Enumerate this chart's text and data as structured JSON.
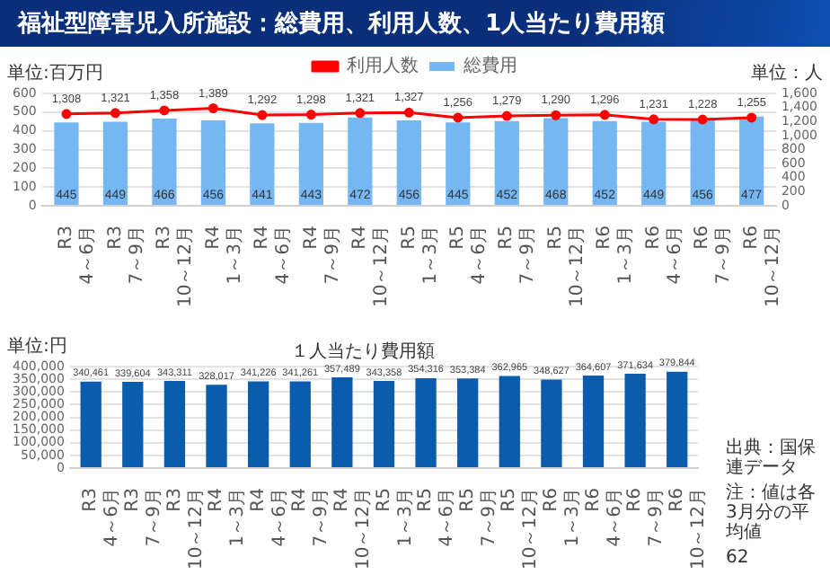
{
  "chart_data": [
    {
      "type": "bar",
      "title": "福祉型障害児入所施設：総費用、利用人数、1人当たり費用額",
      "ylabel": "単位:百万円",
      "y2label": "単位：人",
      "categories": [
        "R3\n4～6月",
        "R3\n7～9月",
        "R3\n10～12月",
        "R4\n1～3月",
        "R4\n4～6月",
        "R4\n7～9月",
        "R4\n10～12月",
        "R5\n1～3月",
        "R5\n4～6月",
        "R5\n7～9月",
        "R5\n10～12月",
        "R6\n1～3月",
        "R6\n4～6月",
        "R6\n7～9月",
        "R6\n10～12月"
      ],
      "series": [
        {
          "name": "総費用",
          "type": "bar",
          "color": "#75b7f2",
          "values": [
            445,
            449,
            466,
            456,
            441,
            443,
            472,
            456,
            445,
            452,
            468,
            452,
            449,
            456,
            477
          ]
        },
        {
          "name": "利用人数",
          "type": "line",
          "axis": "y2",
          "color": "#ff0000",
          "values": [
            1308,
            1321,
            1358,
            1389,
            1292,
            1298,
            1321,
            1327,
            1256,
            1279,
            1290,
            1296,
            1231,
            1228,
            1255
          ],
          "value_labels": [
            "1,308",
            "1,321",
            "1,358",
            "1,389",
            "1,292",
            "1,298",
            "1,321",
            "1,327",
            "1,256",
            "1,279",
            "1,290",
            "1,296",
            "1,231",
            "1,228",
            "1,255"
          ]
        }
      ],
      "ylim": [
        0,
        600
      ],
      "yticks": [
        0,
        100,
        200,
        300,
        400,
        500,
        600
      ],
      "y2lim": [
        0,
        1600
      ],
      "y2ticks": [
        0,
        200,
        400,
        600,
        800,
        {
          "value": 1000,
          "label": "1,000"
        },
        {
          "value": 1200,
          "label": "1,200"
        },
        {
          "value": 1400,
          "label": "1,400"
        },
        {
          "value": 1600,
          "label": "1,600"
        }
      ],
      "grid": "y",
      "legend": "top",
      "marker": "circle",
      "data_labels": true
    },
    {
      "type": "bar",
      "title": "１人当たり費用額",
      "ylabel": "単位:円",
      "categories": [
        "R3\n4～6月",
        "R3\n7～9月",
        "R3\n10～12月",
        "R4\n1～3月",
        "R4\n4～6月",
        "R4\n7～9月",
        "R4\n10～12月",
        "R5\n1～3月",
        "R5\n4～6月",
        "R5\n7～9月",
        "R5\n10～12月",
        "R6\n1～3月",
        "R6\n4～6月",
        "R6\n7～9月",
        "R6\n10～12月"
      ],
      "values": [
        340461,
        339604,
        343311,
        328017,
        341226,
        341261,
        357489,
        343358,
        354316,
        353384,
        362965,
        348627,
        364607,
        371634,
        379844
      ],
      "value_labels": [
        "340,461",
        "339,604",
        "343,311",
        "328,017",
        "341,226",
        "341,261",
        "357,489",
        "343,358",
        "354,316",
        "353,384",
        "362,965",
        "348,627",
        "364,607",
        "371,634",
        "379,844"
      ],
      "color": "#0b5cad",
      "ylim": [
        0,
        400000
      ],
      "yticks": [
        0,
        {
          "value": 50000,
          "label": "50,000"
        },
        {
          "value": 100000,
          "label": "100,000"
        },
        {
          "value": 150000,
          "label": "150,000"
        },
        {
          "value": 200000,
          "label": "200,000"
        },
        {
          "value": 250000,
          "label": "250,000"
        },
        {
          "value": 300000,
          "label": "300,000"
        },
        {
          "value": 350000,
          "label": "350,000"
        },
        {
          "value": 400000,
          "label": "400,000"
        }
      ],
      "grid": "y",
      "annotations": [
        "出典：国保連データ",
        "注：値は各3月分の平均値",
        "62"
      ]
    }
  ]
}
